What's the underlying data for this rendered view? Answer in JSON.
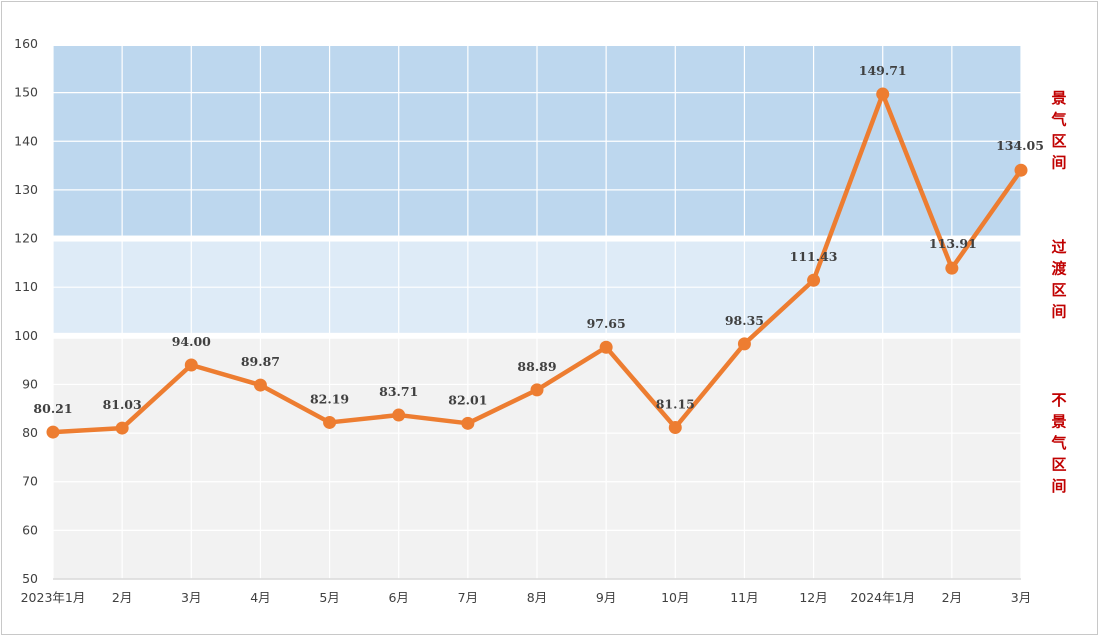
{
  "chart_data": {
    "type": "line",
    "categories": [
      "2023年1月",
      "2月",
      "3月",
      "4月",
      "5月",
      "6月",
      "7月",
      "8月",
      "9月",
      "10月",
      "11月",
      "12月",
      "2024年1月",
      "2月",
      "3月"
    ],
    "values": [
      80.21,
      81.03,
      94.0,
      89.87,
      82.19,
      83.71,
      82.01,
      88.89,
      97.65,
      81.15,
      98.35,
      111.43,
      149.71,
      113.91,
      134.05
    ],
    "value_labels": [
      "80.21",
      "81.03",
      "94.00",
      "89.87",
      "82.19",
      "83.71",
      "82.01",
      "88.89",
      "97.65",
      "81.15",
      "98.35",
      "111.43",
      "149.71",
      "113.91",
      "134.05"
    ],
    "ylim": [
      50,
      160
    ],
    "yticks": [
      "50",
      "60",
      "70",
      "80",
      "90",
      "100",
      "110",
      "120",
      "130",
      "140",
      "150",
      "160"
    ],
    "title": "",
    "xlabel": "",
    "ylabel": "",
    "grid": true,
    "line_color": "#ed7d31",
    "bands": [
      {
        "label": "景气区间",
        "from": 120,
        "to": 160,
        "color": "#bdd7ee"
      },
      {
        "label": "过渡区间",
        "from": 100,
        "to": 120,
        "color": "#deebf7"
      },
      {
        "label": "不景气区间",
        "from": 50,
        "to": 100,
        "color": "#f2f2f2"
      }
    ],
    "zone_label_color": "#c00000"
  }
}
